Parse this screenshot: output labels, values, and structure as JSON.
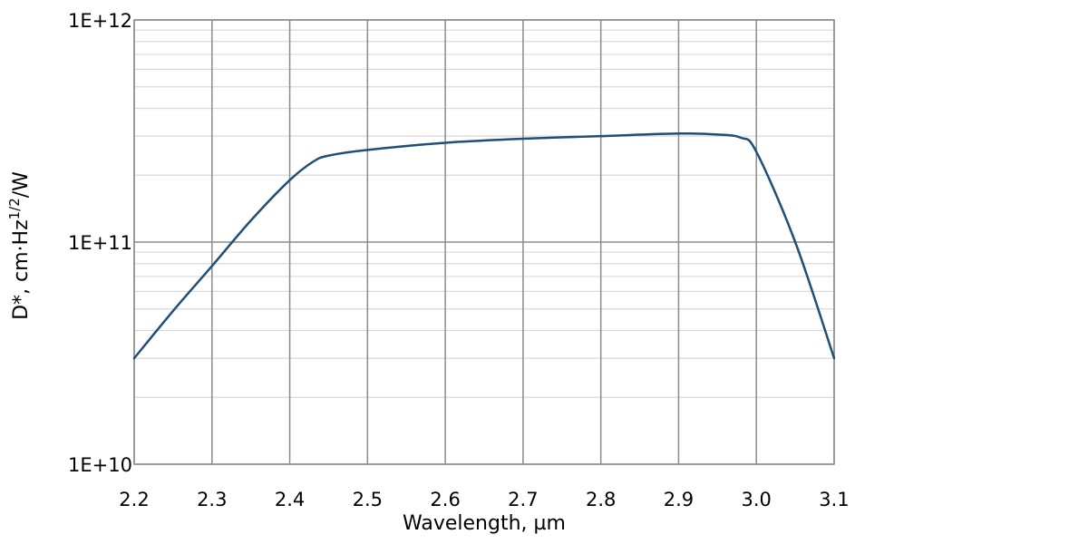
{
  "chart_data": {
    "type": "line",
    "title": "",
    "xlabel": "Wavelength, µm",
    "ylabel_parts": {
      "main": "D*, cm·Hz",
      "superscript": "1/2",
      "suffix": "/W"
    },
    "x_scale": "linear",
    "y_scale": "log",
    "xlim": [
      2.2,
      3.1
    ],
    "ylim": [
      10000000000.0,
      1000000000000.0
    ],
    "x_ticks": [
      2.2,
      2.3,
      2.4,
      2.5,
      2.6,
      2.7,
      2.8,
      2.9,
      3.0,
      3.1
    ],
    "x_tick_labels": [
      "2.2",
      "2.3",
      "2.4",
      "2.5",
      "2.6",
      "2.7",
      "2.8",
      "2.9",
      "3.0",
      "3.1"
    ],
    "y_ticks": [
      10000000000.0,
      100000000000.0,
      1000000000000.0
    ],
    "y_tick_labels": [
      "1E+10",
      "1E+11",
      "1E+12"
    ],
    "grid": true,
    "legend": "none",
    "series": [
      {
        "color": "#1f4e79",
        "x": [
          2.2,
          2.25,
          2.3,
          2.35,
          2.4,
          2.43,
          2.45,
          2.5,
          2.6,
          2.7,
          2.8,
          2.9,
          2.95,
          2.98,
          3.0,
          3.05,
          3.1
        ],
        "y": [
          30000000000.0,
          49000000000.0,
          78000000000.0,
          125000000000.0,
          190000000000.0,
          230000000000.0,
          245000000000.0,
          260000000000.0,
          280000000000.0,
          292000000000.0,
          300000000000.0,
          308000000000.0,
          305000000000.0,
          295000000000.0,
          255000000000.0,
          100000000000.0,
          30000000000.0
        ]
      }
    ]
  }
}
